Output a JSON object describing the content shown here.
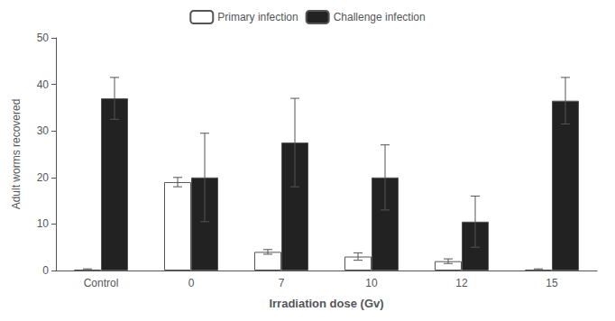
{
  "chart_data": {
    "type": "bar",
    "categories": [
      "Control",
      "0",
      "7",
      "10",
      "12",
      "15"
    ],
    "series": [
      {
        "name": "Primary infection",
        "color": "#ffffff",
        "values": [
          0.2,
          19,
          4,
          3,
          2,
          0.2
        ],
        "errors": [
          0.15,
          1.0,
          0.5,
          0.8,
          0.5,
          0.15
        ]
      },
      {
        "name": "Challenge infection",
        "color": "#222222",
        "values": [
          37,
          20,
          27.5,
          20,
          10.5,
          36.5
        ],
        "errors": [
          4.5,
          9.5,
          9.5,
          7,
          5.5,
          5
        ]
      }
    ],
    "xlabel": "Irradiation dose (Gv)",
    "ylabel": "Adult worms recovered",
    "ylim": [
      0,
      50
    ],
    "yticks": [
      0,
      10,
      20,
      30,
      40,
      50
    ],
    "legend": "top",
    "grid": false
  }
}
